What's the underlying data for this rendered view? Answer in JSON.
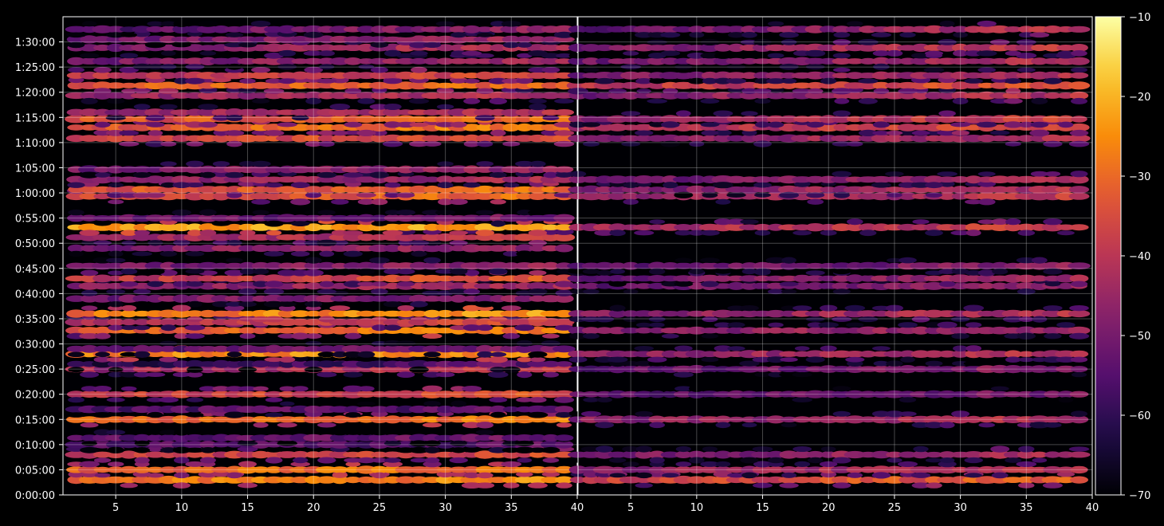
{
  "chart_data": {
    "type": "heatmap",
    "title": "",
    "background": "#000000",
    "colormap": "inferno",
    "colorbar": {
      "min": -70,
      "max": -10,
      "ticks": [
        -70,
        -60,
        -50,
        -40,
        -30,
        -20,
        -10
      ],
      "tick_labels": [
        "−70",
        "−60",
        "−50",
        "−40",
        "−30",
        "−20",
        "−10"
      ]
    },
    "y_axis": {
      "range_seconds": [
        0,
        5700
      ],
      "ticks_seconds": [
        0,
        300,
        600,
        900,
        1200,
        1500,
        1800,
        2100,
        2400,
        2700,
        3000,
        3300,
        3600,
        3900,
        4200,
        4500,
        4800,
        5100,
        5400
      ],
      "tick_labels": [
        "0:00:00",
        "0:05:00",
        "0:10:00",
        "0:15:00",
        "0:20:00",
        "0:25:00",
        "0:30:00",
        "0:35:00",
        "0:40:00",
        "0:45:00",
        "0:50:00",
        "0:55:00",
        "1:00:00",
        "1:05:00",
        "1:10:00",
        "1:15:00",
        "1:20:00",
        "1:25:00",
        "1:30:00"
      ]
    },
    "grid": true,
    "panels": [
      {
        "x_range": [
          1,
          40
        ],
        "x_ticks": [
          5,
          10,
          15,
          20,
          25,
          30,
          35,
          40
        ],
        "x_tick_labels": [
          "5",
          "10",
          "15",
          "20",
          "25",
          "30",
          "35",
          "40"
        ],
        "x_start": 2,
        "x_end": 39,
        "bands": [
          {
            "t": 180,
            "value": -26,
            "gain": 0.2
          },
          {
            "t": 300,
            "value": -28,
            "gain": 0.2
          },
          {
            "t": 480,
            "value": -36,
            "gain": 0.2
          },
          {
            "t": 600,
            "value": -52,
            "gain": 0.1
          },
          {
            "t": 680,
            "value": -50,
            "gain": 0.1
          },
          {
            "t": 900,
            "value": -28,
            "gain": 0.2
          },
          {
            "t": 1020,
            "value": -52,
            "gain": 0.1
          },
          {
            "t": 1200,
            "value": -36,
            "gain": 0.3
          },
          {
            "t": 1500,
            "value": -42,
            "gain": 0.3
          },
          {
            "t": 1560,
            "value": -60,
            "gain": 0.5
          },
          {
            "t": 1680,
            "value": -24,
            "gain": 0.2
          },
          {
            "t": 1740,
            "value": -52,
            "gain": 0.3
          },
          {
            "t": 1960,
            "value": -30,
            "gain": 0.3
          },
          {
            "t": 2060,
            "value": -40,
            "gain": 0.4
          },
          {
            "t": 2160,
            "value": -26,
            "gain": 0.3
          },
          {
            "t": 2340,
            "value": -48,
            "gain": 0.2
          },
          {
            "t": 2490,
            "value": -44,
            "gain": 0.2
          },
          {
            "t": 2580,
            "value": -38,
            "gain": 0.4
          },
          {
            "t": 2730,
            "value": -48,
            "gain": 0.3
          },
          {
            "t": 2940,
            "value": -46,
            "gain": 0.2
          },
          {
            "t": 3070,
            "value": -42,
            "gain": 0.3
          },
          {
            "t": 3190,
            "value": -20,
            "gain": 0.1
          },
          {
            "t": 3300,
            "value": -50,
            "gain": 0.2
          },
          {
            "t": 3560,
            "value": -34,
            "gain": 0.4
          },
          {
            "t": 3640,
            "value": -32,
            "gain": 0.3
          },
          {
            "t": 3760,
            "value": -46,
            "gain": 0.3
          },
          {
            "t": 3880,
            "value": -48,
            "gain": 0.3
          },
          {
            "t": 4250,
            "value": -34,
            "gain": 0.2
          },
          {
            "t": 4380,
            "value": -30,
            "gain": 0.3
          },
          {
            "t": 4480,
            "value": -32,
            "gain": 0.3
          },
          {
            "t": 4560,
            "value": -44,
            "gain": 0.3
          },
          {
            "t": 4760,
            "value": -44,
            "gain": 0.3
          },
          {
            "t": 4880,
            "value": -30,
            "gain": 0.2
          },
          {
            "t": 5000,
            "value": -38,
            "gain": 0.3
          },
          {
            "t": 5170,
            "value": -48,
            "gain": 0.4
          },
          {
            "t": 5330,
            "value": -48,
            "gain": 0.5
          },
          {
            "t": 5430,
            "value": -50,
            "gain": 0.5
          },
          {
            "t": 5550,
            "value": -54,
            "gain": 0.6
          }
        ]
      },
      {
        "x_range": [
          1,
          40
        ],
        "x_ticks": [
          5,
          10,
          15,
          20,
          25,
          30,
          35,
          40
        ],
        "x_tick_labels": [
          "5",
          "10",
          "15",
          "20",
          "25",
          "30",
          "35",
          "40"
        ],
        "x_start": 1,
        "x_end": 39,
        "bands": [
          {
            "t": 180,
            "value": -36,
            "gain": 0.4
          },
          {
            "t": 300,
            "value": -44,
            "gain": 0.3
          },
          {
            "t": 480,
            "value": -48,
            "gain": 0.4
          },
          {
            "t": 900,
            "value": -46,
            "gain": 0.4
          },
          {
            "t": 1200,
            "value": -52,
            "gain": 0.3
          },
          {
            "t": 1500,
            "value": -52,
            "gain": 0.4
          },
          {
            "t": 1680,
            "value": -46,
            "gain": 0.4
          },
          {
            "t": 1960,
            "value": -46,
            "gain": 0.3
          },
          {
            "t": 2160,
            "value": -46,
            "gain": 0.4
          },
          {
            "t": 2490,
            "value": -50,
            "gain": 0.4
          },
          {
            "t": 2580,
            "value": -50,
            "gain": 0.5
          },
          {
            "t": 2730,
            "value": -52,
            "gain": 0.4
          },
          {
            "t": 3190,
            "value": -42,
            "gain": 0.4
          },
          {
            "t": 3560,
            "value": -46,
            "gain": 0.5
          },
          {
            "t": 3640,
            "value": -48,
            "gain": 0.5
          },
          {
            "t": 3760,
            "value": -50,
            "gain": 0.5
          },
          {
            "t": 4250,
            "value": -48,
            "gain": 0.5
          },
          {
            "t": 4380,
            "value": -42,
            "gain": 0.5
          },
          {
            "t": 4480,
            "value": -44,
            "gain": 0.5
          },
          {
            "t": 4760,
            "value": -48,
            "gain": 0.5
          },
          {
            "t": 4880,
            "value": -38,
            "gain": 0.4
          },
          {
            "t": 5000,
            "value": -48,
            "gain": 0.5
          },
          {
            "t": 5170,
            "value": -50,
            "gain": 0.6
          },
          {
            "t": 5330,
            "value": -50,
            "gain": 0.7
          },
          {
            "t": 5550,
            "value": -54,
            "gain": 0.8
          }
        ]
      }
    ]
  }
}
